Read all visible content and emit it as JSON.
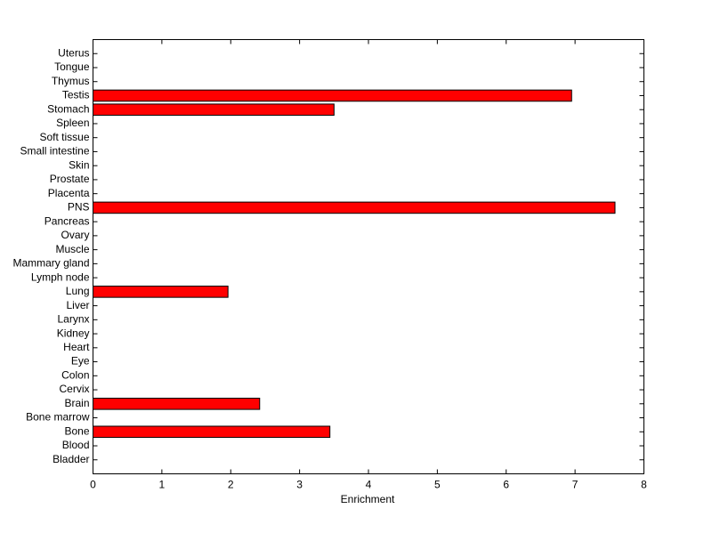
{
  "chart_data": {
    "type": "barh",
    "xlabel": "Enrichment",
    "categories": [
      "Bladder",
      "Blood",
      "Bone",
      "Bone marrow",
      "Brain",
      "Cervix",
      "Colon",
      "Eye",
      "Heart",
      "Kidney",
      "Larynx",
      "Liver",
      "Lung",
      "Lymph node",
      "Mammary gland",
      "Muscle",
      "Ovary",
      "Pancreas",
      "PNS",
      "Placenta",
      "Prostate",
      "Skin",
      "Small intestine",
      "Soft tissue",
      "Spleen",
      "Stomach",
      "Testis",
      "Thymus",
      "Tongue",
      "Uterus"
    ],
    "values": [
      0,
      0,
      3.44,
      0,
      2.42,
      0,
      0,
      0,
      0,
      0,
      0,
      0,
      1.96,
      0,
      0,
      0,
      0,
      0,
      7.58,
      0,
      0,
      0,
      0,
      0,
      0,
      3.5,
      6.95,
      0,
      0,
      0
    ],
    "color": "#ff0000",
    "xlim": [
      0,
      8
    ],
    "xticks": [
      0,
      1,
      2,
      3,
      4,
      5,
      6,
      7,
      8
    ]
  }
}
